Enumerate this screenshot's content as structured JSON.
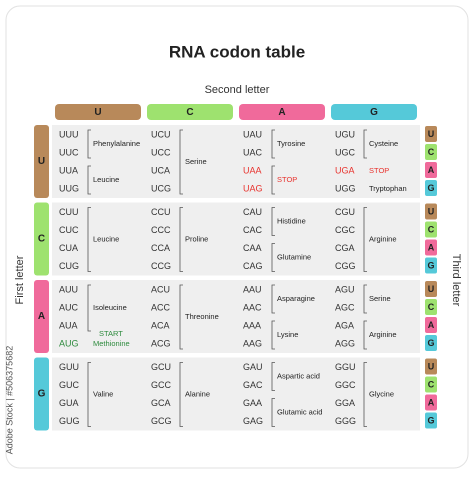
{
  "title": "RNA codon table",
  "second_letter_label": "Second letter",
  "first_letter_label": "First letter",
  "third_letter_label": "Third letter",
  "watermark": "Adobe Stock | #506375682",
  "letter_colors": [
    "#b8895a",
    "#9ee26f",
    "#f06a9b",
    "#55c9d9"
  ],
  "columns": [
    "U",
    "C",
    "A",
    "G"
  ],
  "rows": [
    {
      "letter": "U",
      "third_letters": [
        "U",
        "C",
        "A",
        "G"
      ],
      "cells": [
        {
          "groups": [
            {
              "codons": [
                "UUU",
                "UUC"
              ],
              "amino_acid": "Phenylalanine"
            },
            {
              "codons": [
                "UUA",
                "UUG"
              ],
              "amino_acid": "Leucine"
            }
          ]
        },
        {
          "groups": [
            {
              "codons": [
                "UCU",
                "UCC",
                "UCA",
                "UCG"
              ],
              "amino_acid": "Serine"
            }
          ]
        },
        {
          "groups": [
            {
              "codons": [
                "UAU",
                "UAC"
              ],
              "amino_acid": "Tyrosine"
            },
            {
              "codons": [
                "UAA",
                "UAG"
              ],
              "amino_acid": "STOP",
              "color": "#e8332e"
            }
          ]
        },
        {
          "groups": [
            {
              "codons": [
                "UGU",
                "UGC"
              ],
              "amino_acid": "Cysteine"
            },
            {
              "codons": [
                "UGA"
              ],
              "amino_acid": "STOP",
              "color": "#e8332e"
            },
            {
              "codons": [
                "UGG"
              ],
              "amino_acid": "Tryptophan"
            }
          ]
        }
      ]
    },
    {
      "letter": "C",
      "third_letters": [
        "U",
        "C",
        "A",
        "G"
      ],
      "cells": [
        {
          "groups": [
            {
              "codons": [
                "CUU",
                "CUC",
                "CUA",
                "CUG"
              ],
              "amino_acid": "Leucine"
            }
          ]
        },
        {
          "groups": [
            {
              "codons": [
                "CCU",
                "CCC",
                "CCA",
                "CCG"
              ],
              "amino_acid": "Proline"
            }
          ]
        },
        {
          "groups": [
            {
              "codons": [
                "CAU",
                "CAC"
              ],
              "amino_acid": "Histidine"
            },
            {
              "codons": [
                "CAA",
                "CAG"
              ],
              "amino_acid": "Glutamine"
            }
          ]
        },
        {
          "groups": [
            {
              "codons": [
                "CGU",
                "CGC",
                "CGA",
                "CGG"
              ],
              "amino_acid": "Arginine"
            }
          ]
        }
      ]
    },
    {
      "letter": "A",
      "third_letters": [
        "U",
        "C",
        "A",
        "G"
      ],
      "cells": [
        {
          "groups": [
            {
              "codons": [
                "AUU",
                "AUC",
                "AUA"
              ],
              "amino_acid": "Isoleucine"
            },
            {
              "codons": [
                "AUG"
              ],
              "amino_acid": "Methionine",
              "note": "START",
              "color": "#2e8b3e"
            }
          ]
        },
        {
          "groups": [
            {
              "codons": [
                "ACU",
                "ACC",
                "ACA",
                "ACG"
              ],
              "amino_acid": "Threonine"
            }
          ]
        },
        {
          "groups": [
            {
              "codons": [
                "AAU",
                "AAC"
              ],
              "amino_acid": "Asparagine"
            },
            {
              "codons": [
                "AAA",
                "AAG"
              ],
              "amino_acid": "Lysine"
            }
          ]
        },
        {
          "groups": [
            {
              "codons": [
                "AGU",
                "AGC"
              ],
              "amino_acid": "Serine"
            },
            {
              "codons": [
                "AGA",
                "AGG"
              ],
              "amino_acid": "Arginine"
            }
          ]
        }
      ]
    },
    {
      "letter": "G",
      "third_letters": [
        "U",
        "C",
        "A",
        "G"
      ],
      "cells": [
        {
          "groups": [
            {
              "codons": [
                "GUU",
                "GUC",
                "GUA",
                "GUG"
              ],
              "amino_acid": "Valine"
            }
          ]
        },
        {
          "groups": [
            {
              "codons": [
                "GCU",
                "GCC",
                "GCA",
                "GCG"
              ],
              "amino_acid": "Alanine"
            }
          ]
        },
        {
          "groups": [
            {
              "codons": [
                "GAU",
                "GAC"
              ],
              "amino_acid": "Aspartic acid"
            },
            {
              "codons": [
                "GAA",
                "GAG"
              ],
              "amino_acid": "Glutamic acid"
            }
          ]
        },
        {
          "groups": [
            {
              "codons": [
                "GGU",
                "GGC",
                "GGA",
                "GGG"
              ],
              "amino_acid": "Glycine"
            }
          ]
        }
      ]
    }
  ]
}
